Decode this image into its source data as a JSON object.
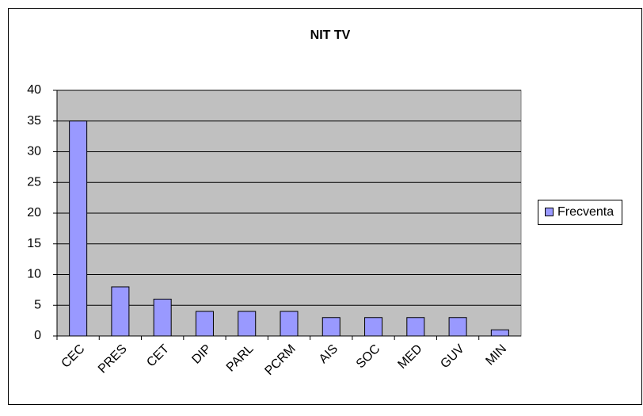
{
  "chart_data": {
    "type": "bar",
    "title": "NIT TV",
    "categories": [
      "CEC",
      "PRES",
      "CET",
      "DIP",
      "PARL",
      "PCRM",
      "AIS",
      "SOC",
      "MED",
      "GUV",
      "MIN"
    ],
    "series": [
      {
        "name": "Frecventa",
        "color": "#9999ff",
        "values": [
          35,
          8,
          6,
          4,
          4,
          4,
          3,
          3,
          3,
          3,
          1
        ]
      }
    ],
    "ylim": [
      0,
      40
    ],
    "yticks": [
      0,
      5,
      10,
      15,
      20,
      25,
      30,
      35,
      40
    ],
    "grid": true,
    "legend": "right"
  }
}
